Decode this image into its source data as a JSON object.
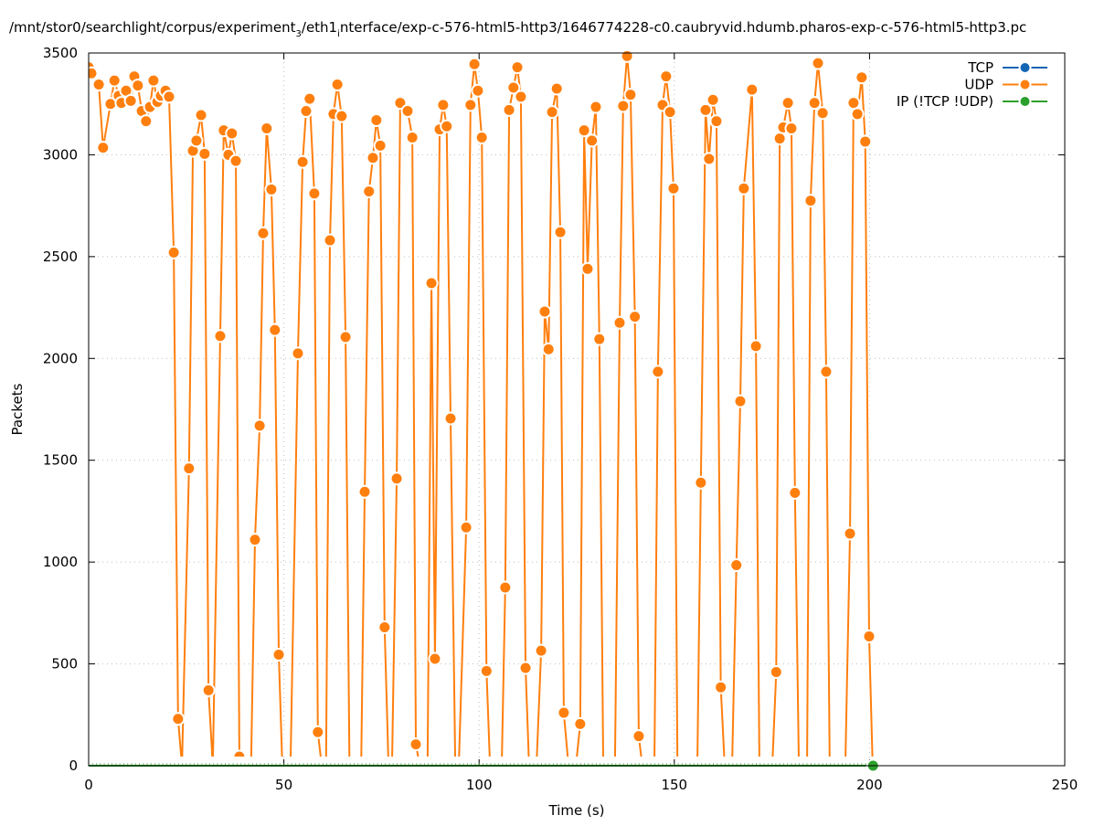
{
  "chart_data": {
    "type": "line",
    "title": "/mnt/stor0/searchlight/corpus/experiment_3/eth1_interface/exp-c-576-html5-http3/1646774228-c0.caubryvid.hdumb.pharos-exp-c-576-html5-http3.pc",
    "title_parts": {
      "a": "/mnt/stor0/searchlight/corpus/experiment",
      "sub1": "3",
      "b": "/eth1",
      "sub2": "i",
      "c": "nterface/exp-c-576-html5-http3/1646774228-c0.caubryvid.hdumb.pharos-exp-c-576-html5-http3.pc"
    },
    "xlabel": "Time (s)",
    "ylabel": "Packets",
    "xlim": [
      0,
      250
    ],
    "ylim": [
      0,
      3500
    ],
    "xticks": [
      "0",
      "50",
      "100",
      "150",
      "200",
      "250"
    ],
    "yticks": [
      "0",
      "500",
      "1000",
      "1500",
      "2000",
      "2500",
      "3000",
      "3500"
    ],
    "grid": true,
    "legend_position": "top-right",
    "colors": {
      "TCP": "#1565b5",
      "UDP": "#ff7f0e",
      "IP": "#2ca02c"
    },
    "series": [
      {
        "name": "TCP",
        "points": []
      },
      {
        "name": "UDP",
        "points": [
          [
            0,
            3430
          ],
          [
            0.7,
            3400
          ],
          [
            2.6,
            3345
          ],
          [
            3.7,
            3035
          ],
          [
            5.6,
            3250
          ],
          [
            6.6,
            3365
          ],
          [
            7.7,
            3290
          ],
          [
            8.4,
            3255
          ],
          [
            9.6,
            3315
          ],
          [
            10.8,
            3265
          ],
          [
            11.7,
            3385
          ],
          [
            12.6,
            3340
          ],
          [
            13.6,
            3215
          ],
          [
            14.7,
            3165
          ],
          [
            15.7,
            3235
          ],
          [
            16.6,
            3365
          ],
          [
            17.6,
            3260
          ],
          [
            18.5,
            3290
          ],
          [
            19.7,
            3315
          ],
          [
            20.6,
            3285
          ],
          [
            21.8,
            2520
          ],
          [
            22.9,
            230
          ],
          [
            23.9,
            0
          ],
          [
            25.7,
            1460
          ],
          [
            26.7,
            3020
          ],
          [
            27.6,
            3070
          ],
          [
            28.8,
            3195
          ],
          [
            29.7,
            3005
          ],
          [
            30.7,
            370
          ],
          [
            31.8,
            0
          ],
          [
            33.7,
            2110
          ],
          [
            34.6,
            3120
          ],
          [
            35.8,
            3000
          ],
          [
            36.7,
            3105
          ],
          [
            37.7,
            2970
          ],
          [
            38.6,
            45
          ],
          [
            39.6,
            0
          ],
          [
            41.6,
            0
          ],
          [
            42.6,
            1110
          ],
          [
            43.8,
            1670
          ],
          [
            44.7,
            2615
          ],
          [
            45.6,
            3130
          ],
          [
            46.8,
            2830
          ],
          [
            47.7,
            2140
          ],
          [
            48.7,
            545
          ],
          [
            49.6,
            0
          ],
          [
            51.7,
            0
          ],
          [
            53.6,
            2025
          ],
          [
            54.8,
            2965
          ],
          [
            55.7,
            3215
          ],
          [
            56.6,
            3275
          ],
          [
            57.8,
            2810
          ],
          [
            58.7,
            165
          ],
          [
            59.7,
            0
          ],
          [
            60.8,
            0
          ],
          [
            61.8,
            2580
          ],
          [
            62.7,
            3200
          ],
          [
            63.7,
            3345
          ],
          [
            64.8,
            3190
          ],
          [
            65.8,
            2105
          ],
          [
            66.8,
            0
          ],
          [
            69.8,
            0
          ],
          [
            70.7,
            1345
          ],
          [
            71.8,
            2820
          ],
          [
            72.8,
            2985
          ],
          [
            73.7,
            3170
          ],
          [
            74.7,
            3045
          ],
          [
            75.8,
            680
          ],
          [
            76.8,
            0
          ],
          [
            77.7,
            0
          ],
          [
            78.9,
            1410
          ],
          [
            79.8,
            3255
          ],
          [
            81.7,
            3215
          ],
          [
            82.9,
            3085
          ],
          [
            83.8,
            105
          ],
          [
            84.8,
            0
          ],
          [
            86.8,
            0
          ],
          [
            87.8,
            2370
          ],
          [
            88.7,
            525
          ],
          [
            89.9,
            3125
          ],
          [
            90.8,
            3245
          ],
          [
            91.7,
            3140
          ],
          [
            92.7,
            1705
          ],
          [
            93.9,
            0
          ],
          [
            94.8,
            0
          ],
          [
            96.7,
            1170
          ],
          [
            97.8,
            3245
          ],
          [
            98.8,
            3445
          ],
          [
            99.7,
            3315
          ],
          [
            100.7,
            3085
          ],
          [
            101.9,
            465
          ],
          [
            102.8,
            0
          ],
          [
            105.8,
            0
          ],
          [
            106.7,
            875
          ],
          [
            107.7,
            3220
          ],
          [
            108.8,
            3330
          ],
          [
            109.8,
            3430
          ],
          [
            110.7,
            3285
          ],
          [
            111.9,
            480
          ],
          [
            112.8,
            0
          ],
          [
            114.7,
            0
          ],
          [
            115.9,
            565
          ],
          [
            116.8,
            2230
          ],
          [
            117.8,
            2045
          ],
          [
            118.7,
            3210
          ],
          [
            119.9,
            3325
          ],
          [
            120.8,
            2620
          ],
          [
            121.7,
            260
          ],
          [
            122.9,
            0
          ],
          [
            124.8,
            0
          ],
          [
            125.9,
            205
          ],
          [
            126.9,
            3120
          ],
          [
            127.8,
            2440
          ],
          [
            128.9,
            3070
          ],
          [
            129.9,
            3235
          ],
          [
            130.8,
            2095
          ],
          [
            131.8,
            0
          ],
          [
            134.8,
            0
          ],
          [
            136.0,
            2175
          ],
          [
            136.9,
            3240
          ],
          [
            137.9,
            3485
          ],
          [
            138.8,
            3295
          ],
          [
            139.9,
            2205
          ],
          [
            140.9,
            145
          ],
          [
            141.8,
            0
          ],
          [
            144.9,
            0
          ],
          [
            145.8,
            1935
          ],
          [
            147.0,
            3245
          ],
          [
            147.9,
            3385
          ],
          [
            148.9,
            3210
          ],
          [
            149.8,
            2835
          ],
          [
            150.8,
            0
          ],
          [
            155.9,
            0
          ],
          [
            156.8,
            1390
          ],
          [
            158.0,
            3220
          ],
          [
            158.9,
            2980
          ],
          [
            159.9,
            3270
          ],
          [
            160.8,
            3165
          ],
          [
            161.9,
            385
          ],
          [
            162.9,
            0
          ],
          [
            164.8,
            0
          ],
          [
            165.9,
            985
          ],
          [
            166.9,
            1790
          ],
          [
            167.8,
            2835
          ],
          [
            169.9,
            3320
          ],
          [
            170.9,
            2060
          ],
          [
            171.8,
            0
          ],
          [
            175.1,
            0
          ],
          [
            176.1,
            460
          ],
          [
            177.0,
            3080
          ],
          [
            177.9,
            3135
          ],
          [
            179.1,
            3255
          ],
          [
            180.0,
            3130
          ],
          [
            180.9,
            1340
          ],
          [
            181.9,
            0
          ],
          [
            184.0,
            0
          ],
          [
            184.9,
            2775
          ],
          [
            185.9,
            3255
          ],
          [
            186.8,
            3450
          ],
          [
            188.0,
            3205
          ],
          [
            188.9,
            1935
          ],
          [
            189.8,
            0
          ],
          [
            193.8,
            0
          ],
          [
            195.0,
            1140
          ],
          [
            195.9,
            3255
          ],
          [
            196.9,
            3200
          ],
          [
            198.0,
            3380
          ],
          [
            198.9,
            3065
          ],
          [
            199.9,
            635
          ],
          [
            200.8,
            0
          ]
        ]
      },
      {
        "name": "IP (!TCP  !UDP)",
        "points": [
          [
            0,
            0
          ],
          [
            200.9,
            0
          ]
        ]
      }
    ]
  }
}
